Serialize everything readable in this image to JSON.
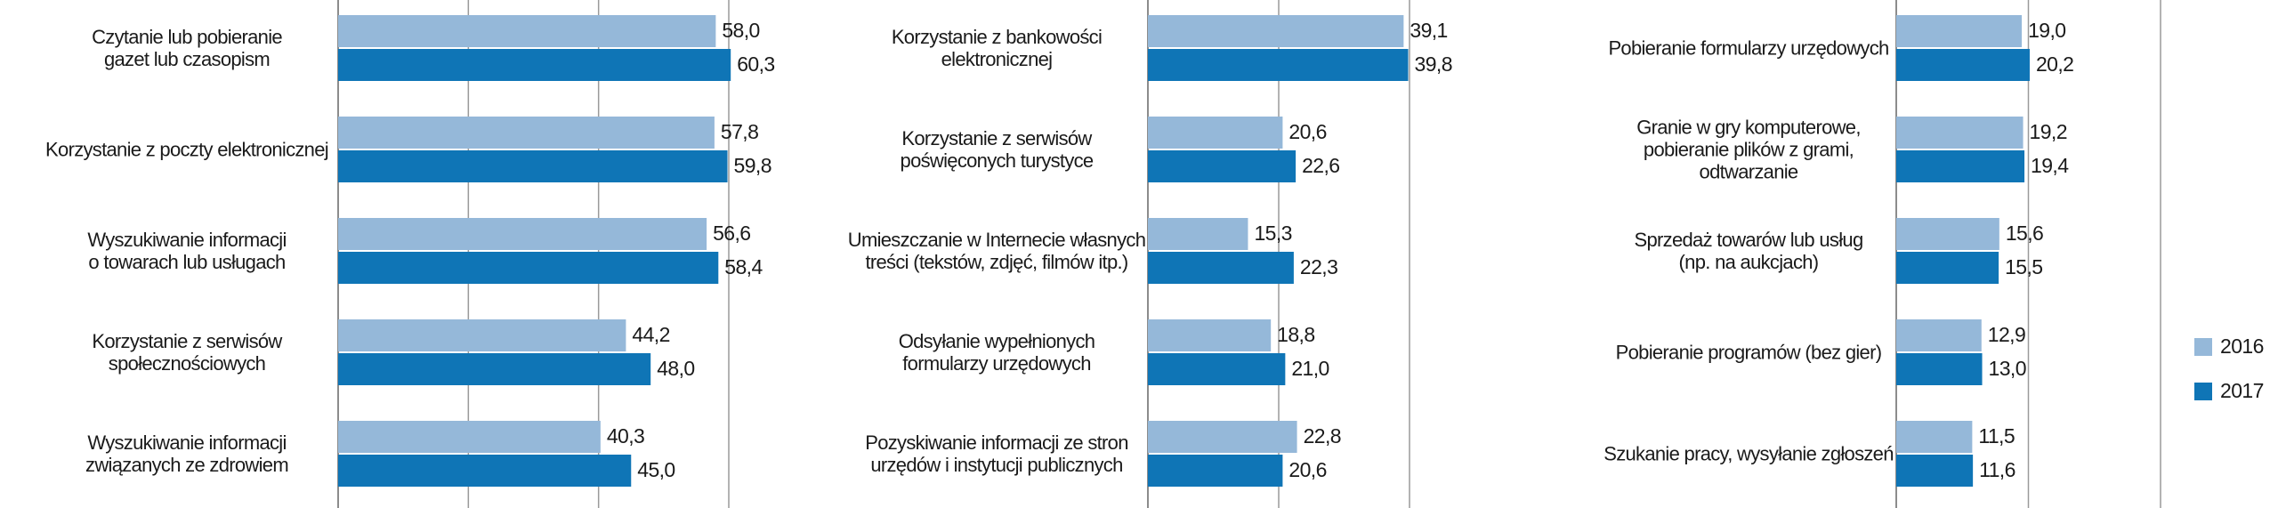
{
  "chart_data": [
    {
      "type": "hbar",
      "categories": [
        "Czytanie lub pobieranie\ngazet lub czasopism",
        "Korzystanie z poczty elektronicznej",
        "Wyszukiwanie informacji\no towarach lub usługach",
        "Korzystanie z serwisów\nspołecznościowych",
        "Wyszukiwanie informacji\nzwiązanych ze zdrowiem"
      ],
      "series": [
        {
          "color": "#95b8d9",
          "values": [
            58.0,
            57.8,
            56.6,
            44.2,
            40.3
          ],
          "value_labels": [
            "58,0",
            "57,8",
            "56,6",
            "44,2",
            "40,3"
          ]
        },
        {
          "color": "#0f75b6",
          "values": [
            60.3,
            59.8,
            58.4,
            48.0,
            45.0
          ],
          "value_labels": [
            "60,3",
            "59,8",
            "58,4",
            "48,0",
            "45,0"
          ]
        }
      ],
      "xlim": [
        0,
        60
      ],
      "xticks": [
        0,
        20,
        40,
        60
      ],
      "grid": true
    },
    {
      "type": "hbar",
      "categories": [
        "Korzystanie z bankowości\nelektronicznej",
        "Korzystanie z serwisów\npoświęconych turystyce",
        "Umieszczanie w Internecie własnych\ntreści (tekstów, zdjęć, filmów itp.)",
        "Odsyłanie wypełnionych\nformularzy urzędowych",
        "Pozyskiwanie informacji ze stron\nurzędów i instytucji publicznych"
      ],
      "series": [
        {
          "color": "#95b8d9",
          "values": [
            39.1,
            20.6,
            15.3,
            18.8,
            22.8
          ],
          "value_labels": [
            "39,1",
            "20,6",
            "15,3",
            "18,8",
            "22,8"
          ]
        },
        {
          "color": "#0f75b6",
          "values": [
            39.8,
            22.6,
            22.3,
            21.0,
            20.6
          ],
          "value_labels": [
            "39,8",
            "22,6",
            "22,3",
            "21,0",
            "20,6"
          ]
        }
      ],
      "xlim": [
        0,
        40
      ],
      "xticks": [
        0,
        20,
        40
      ],
      "grid": true
    },
    {
      "type": "hbar",
      "categories": [
        "Pobieranie formularzy urzędowych",
        "Granie w gry komputerowe,\npobieranie plików z grami,\nodtwarzanie",
        "Sprzedaż towarów lub usług\n(np. na aukcjach)",
        "Pobieranie programów (bez gier)",
        "Szukanie pracy, wysyłanie zgłoszeń"
      ],
      "series": [
        {
          "name": "2016",
          "color": "#95b8d9",
          "values": [
            19.0,
            19.2,
            15.6,
            12.9,
            11.5
          ],
          "value_labels": [
            "19,0",
            "19,2",
            "15,6",
            "12,9",
            "11,5"
          ]
        },
        {
          "name": "2017",
          "color": "#0f75b6",
          "values": [
            20.2,
            19.4,
            15.5,
            13.0,
            11.6
          ],
          "value_labels": [
            "20,2",
            "19,4",
            "15,5",
            "13,0",
            "11,6"
          ]
        }
      ],
      "xlim": [
        0,
        40
      ],
      "xticks": [
        0,
        20,
        40
      ],
      "grid": true
    }
  ]
}
